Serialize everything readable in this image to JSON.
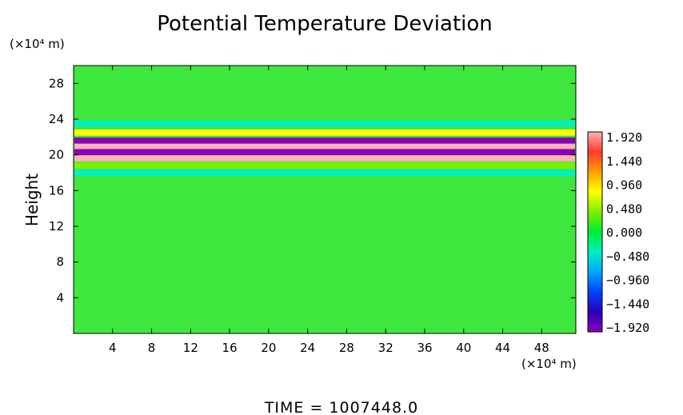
{
  "chart_data": {
    "type": "heatmap",
    "title": "Potential Temperature Deviation",
    "ylabel": "Height",
    "xlabel": "",
    "x_units": "(×10⁴ m)",
    "y_units": "(×10⁴ m)",
    "xlim": [
      0,
      51.5
    ],
    "ylim": [
      0,
      30
    ],
    "x_ticks": [
      "4",
      "8",
      "12",
      "16",
      "20",
      "24",
      "28",
      "32",
      "36",
      "40",
      "44",
      "48"
    ],
    "y_ticks": [
      "4",
      "8",
      "12",
      "16",
      "20",
      "24",
      "28"
    ],
    "colorbar": {
      "labels": [
        "1.920",
        "1.440",
        "0.960",
        "0.480",
        "0.000",
        "−0.480",
        "−0.960",
        "−1.440",
        "−1.920"
      ],
      "range": [
        -1.92,
        1.92
      ],
      "colors": [
        "#ffb3b3",
        "#ff3b2e",
        "#ff9f00",
        "#ffff00",
        "#7cf000",
        "#00ee33",
        "#00f0c0",
        "#00a8ff",
        "#0044ff",
        "#2a00b8",
        "#8a00b8"
      ]
    },
    "field_description_rows": [
      {
        "y": 23.5,
        "value": -0.5
      },
      {
        "y": 22.5,
        "value": 0.8
      },
      {
        "y": 21.6,
        "value": -1.92
      },
      {
        "y": 20.9,
        "value": 1.92
      },
      {
        "y": 20.3,
        "value": -1.92
      },
      {
        "y": 19.6,
        "value": 1.92
      },
      {
        "y": 18.8,
        "value": 0.3
      },
      {
        "y": 18.0,
        "value": -0.2
      }
    ],
    "background_value": 0.0
  },
  "footer": {
    "time_text": "TIME  =  1007448.0"
  }
}
